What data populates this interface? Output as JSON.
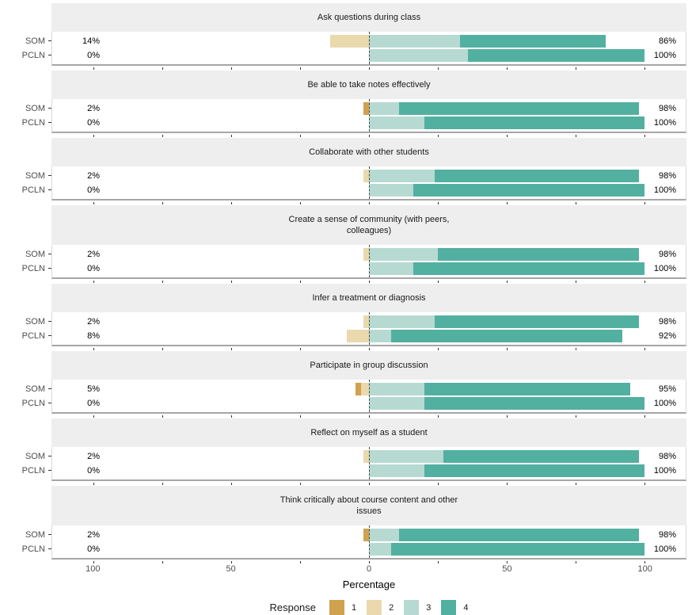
{
  "chart_data": {
    "type": "bar",
    "variant": "diverging-stacked-horizontal-faceted",
    "axis": {
      "label": "Percentage",
      "xlim": [
        -115,
        115
      ],
      "tick_values": [
        -100,
        -50,
        0,
        50,
        100
      ],
      "tick_labels": [
        "100",
        "50",
        "0",
        "50",
        "100"
      ],
      "minor_tick_step": 25,
      "grid": false
    },
    "legend": {
      "title": "Response",
      "position": "bottom",
      "entries": [
        {
          "label": "1",
          "color": "#d0a24f"
        },
        {
          "label": "2",
          "color": "#e9d9ad"
        },
        {
          "label": "3",
          "color": "#b6dad2"
        },
        {
          "label": "4",
          "color": "#52b0a1"
        }
      ]
    },
    "colors": {
      "1": "#d0a24f",
      "2": "#e9d9ad",
      "3": "#b6dad2",
      "4": "#52b0a1",
      "strip_bg": "#eeeeee",
      "panel_border": "#d9d9d9",
      "axis_line": "#a6a6a6"
    },
    "groups": [
      "SOM",
      "PCLN"
    ],
    "panels": [
      {
        "title": "Ask questions during class",
        "rows": [
          {
            "group": "SOM",
            "left_label": "14%",
            "right_label": "86%",
            "neg": [
              [
                "2",
                14
              ]
            ],
            "pos": [
              [
                "3",
                33
              ],
              [
                "4",
                53
              ]
            ]
          },
          {
            "group": "PCLN",
            "left_label": "0%",
            "right_label": "100%",
            "neg": [],
            "pos": [
              [
                "3",
                36
              ],
              [
                "4",
                64
              ]
            ]
          }
        ]
      },
      {
        "title": "Be able to take notes effectively",
        "rows": [
          {
            "group": "SOM",
            "left_label": "2%",
            "right_label": "98%",
            "neg": [
              [
                "1",
                2
              ]
            ],
            "pos": [
              [
                "3",
                11
              ],
              [
                "4",
                87
              ]
            ]
          },
          {
            "group": "PCLN",
            "left_label": "0%",
            "right_label": "100%",
            "neg": [],
            "pos": [
              [
                "3",
                20
              ],
              [
                "4",
                80
              ]
            ]
          }
        ]
      },
      {
        "title": "Collaborate with other students",
        "rows": [
          {
            "group": "SOM",
            "left_label": "2%",
            "right_label": "98%",
            "neg": [
              [
                "2",
                2
              ]
            ],
            "pos": [
              [
                "3",
                24
              ],
              [
                "4",
                74
              ]
            ]
          },
          {
            "group": "PCLN",
            "left_label": "0%",
            "right_label": "100%",
            "neg": [],
            "pos": [
              [
                "3",
                16
              ],
              [
                "4",
                84
              ]
            ]
          }
        ]
      },
      {
        "title": "Create a sense of community (with peers,\ncolleagues)",
        "rows": [
          {
            "group": "SOM",
            "left_label": "2%",
            "right_label": "98%",
            "neg": [
              [
                "2",
                2
              ]
            ],
            "pos": [
              [
                "3",
                25
              ],
              [
                "4",
                73
              ]
            ]
          },
          {
            "group": "PCLN",
            "left_label": "0%",
            "right_label": "100%",
            "neg": [],
            "pos": [
              [
                "3",
                16
              ],
              [
                "4",
                84
              ]
            ]
          }
        ]
      },
      {
        "title": "Infer a treatment or diagnosis",
        "rows": [
          {
            "group": "SOM",
            "left_label": "2%",
            "right_label": "98%",
            "neg": [
              [
                "2",
                2
              ]
            ],
            "pos": [
              [
                "3",
                24
              ],
              [
                "4",
                74
              ]
            ]
          },
          {
            "group": "PCLN",
            "left_label": "8%",
            "right_label": "92%",
            "neg": [
              [
                "2",
                8
              ]
            ],
            "pos": [
              [
                "3",
                8
              ],
              [
                "4",
                84
              ]
            ]
          }
        ]
      },
      {
        "title": "Participate in group discussion",
        "rows": [
          {
            "group": "SOM",
            "left_label": "5%",
            "right_label": "95%",
            "neg": [
              [
                "1",
                2
              ],
              [
                "2",
                3
              ]
            ],
            "pos": [
              [
                "3",
                20
              ],
              [
                "4",
                75
              ]
            ]
          },
          {
            "group": "PCLN",
            "left_label": "0%",
            "right_label": "100%",
            "neg": [],
            "pos": [
              [
                "3",
                20
              ],
              [
                "4",
                80
              ]
            ]
          }
        ]
      },
      {
        "title": "Reflect on myself as a student",
        "rows": [
          {
            "group": "SOM",
            "left_label": "2%",
            "right_label": "98%",
            "neg": [
              [
                "2",
                2
              ]
            ],
            "pos": [
              [
                "3",
                27
              ],
              [
                "4",
                71
              ]
            ]
          },
          {
            "group": "PCLN",
            "left_label": "0%",
            "right_label": "100%",
            "neg": [],
            "pos": [
              [
                "3",
                20
              ],
              [
                "4",
                80
              ]
            ]
          }
        ]
      },
      {
        "title": "Think critically about course content and other\nissues",
        "rows": [
          {
            "group": "SOM",
            "left_label": "2%",
            "right_label": "98%",
            "neg": [
              [
                "1",
                2
              ]
            ],
            "pos": [
              [
                "3",
                11
              ],
              [
                "4",
                87
              ]
            ]
          },
          {
            "group": "PCLN",
            "left_label": "0%",
            "right_label": "100%",
            "neg": [],
            "pos": [
              [
                "3",
                8
              ],
              [
                "4",
                92
              ]
            ]
          }
        ]
      }
    ]
  }
}
